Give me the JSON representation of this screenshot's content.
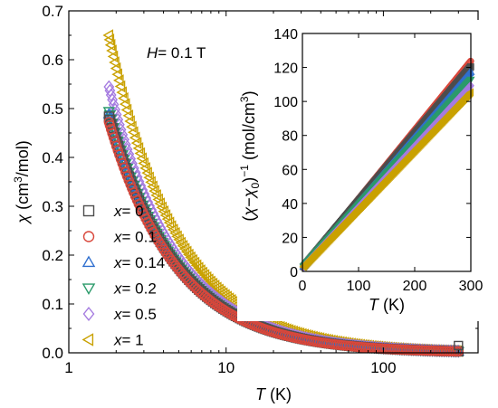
{
  "chart_data": [
    {
      "type": "scatter",
      "name": "main",
      "xscale": "log",
      "xlim": [
        1,
        400
      ],
      "ylim": [
        0,
        0.7
      ],
      "xticks": [
        "1",
        "10",
        "100"
      ],
      "xtick_values": [
        1,
        10,
        100
      ],
      "yticks": [
        "0.0",
        "0.1",
        "0.2",
        "0.3",
        "0.4",
        "0.5",
        "0.6",
        "0.7"
      ],
      "ytick_values": [
        0,
        0.1,
        0.2,
        0.3,
        0.4,
        0.5,
        0.6,
        0.7
      ],
      "xlabel": {
        "italic": "T",
        "rest": " (K)"
      },
      "ylabel": {
        "italic": "χ",
        "rest": " (cm",
        "sup": "3",
        "end": "/mol)"
      },
      "annotation": {
        "italic": "H",
        "rest": "= 0.1 T"
      },
      "legend_placement": "lower-left",
      "series": [
        {
          "name": "x= 0",
          "label_italic": "x",
          "label_rest": "= 0",
          "marker": "square",
          "color": "#4d4d4d",
          "C": 0.87,
          "theta": 0.0,
          "chi0": 0.0,
          "tmin": 1.8,
          "tmax": 300,
          "n": 170
        },
        {
          "name": "x= 0.1",
          "label_italic": "x",
          "label_rest": "= 0.1",
          "marker": "circle",
          "color": "#d9473b",
          "C": 0.85,
          "theta": 0.0,
          "chi0": 0.0,
          "tmin": 1.8,
          "tmax": 300,
          "n": 170
        },
        {
          "name": "x= 0.14",
          "label_italic": "x",
          "label_rest": "= 0.14",
          "marker": "triangle-up",
          "color": "#2f6fcf",
          "C": 0.88,
          "theta": 0.0,
          "chi0": 0.0,
          "tmin": 1.8,
          "tmax": 300,
          "n": 170
        },
        {
          "name": "x= 0.2",
          "label_italic": "x",
          "label_rest": "= 0.2",
          "marker": "triangle-down",
          "color": "#2a9a6a",
          "C": 0.89,
          "theta": 0.0,
          "chi0": 0.0,
          "tmin": 1.8,
          "tmax": 300,
          "n": 170
        },
        {
          "name": "x= 0.5",
          "label_italic": "x",
          "label_rest": "= 0.5",
          "marker": "diamond",
          "color": "#a57be0",
          "C": 0.98,
          "theta": 0.0,
          "chi0": 0.0,
          "tmin": 1.8,
          "tmax": 300,
          "n": 170
        },
        {
          "name": "x= 1",
          "label_italic": "x",
          "label_rest": "= 1",
          "marker": "triangle-left",
          "color": "#c9a100",
          "C": 1.17,
          "theta": 0.0,
          "chi0": 0.0,
          "tmin": 1.8,
          "tmax": 300,
          "n": 170
        }
      ]
    },
    {
      "type": "scatter",
      "name": "inset",
      "xlim": [
        0,
        300
      ],
      "ylim": [
        0,
        140
      ],
      "xticks": [
        "0",
        "100",
        "200",
        "300"
      ],
      "xtick_values": [
        0,
        100,
        200,
        300
      ],
      "yticks": [
        "0",
        "20",
        "40",
        "60",
        "80",
        "100",
        "120",
        "140"
      ],
      "ytick_values": [
        0,
        20,
        40,
        60,
        80,
        100,
        120,
        140
      ],
      "xlabel": {
        "italic": "T",
        "rest": " (K)"
      },
      "ylabel": {
        "pre": "(",
        "chi": "χ",
        "mid": "−",
        "chi0": "χ",
        "sub": "0",
        "close": ")",
        "sup": "−1",
        "rest": " (mol/cm",
        "sup2": "3",
        "end": ")"
      },
      "series": [
        {
          "name": "x= 0.1",
          "marker": "circle",
          "color": "#d9473b",
          "slope": 0.406,
          "intercept": 2.0
        },
        {
          "name": "x= 0",
          "marker": "square",
          "color": "#4d4d4d",
          "slope": 0.395,
          "intercept": 2.0
        },
        {
          "name": "x= 0.14",
          "marker": "triangle-up",
          "color": "#2f6fcf",
          "slope": 0.385,
          "intercept": 2.0
        },
        {
          "name": "x= 0.2",
          "marker": "triangle-down",
          "color": "#2a9a6a",
          "slope": 0.37,
          "intercept": 2.0
        },
        {
          "name": "x= 0.5",
          "marker": "diamond",
          "color": "#a57be0",
          "slope": 0.358,
          "intercept": 2.0
        },
        {
          "name": "x= 1",
          "marker": "triangle-left",
          "color": "#c9a100",
          "slope": 0.345,
          "intercept": 2.0
        }
      ]
    }
  ]
}
